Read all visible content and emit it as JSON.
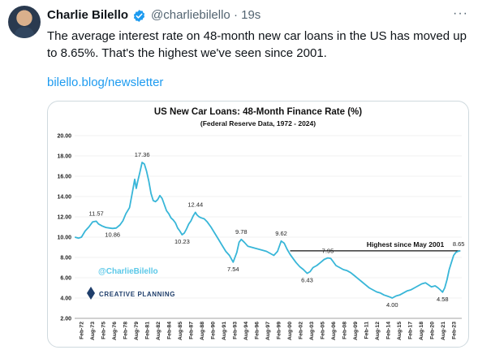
{
  "tweet": {
    "author": "Charlie Bilello",
    "handle": "@charliebilello",
    "time": "· 19s",
    "more": "···",
    "text": "The average interest rate on 48-month new car loans in the US has moved up to 8.65%. That's the highest we've seen since 2001.",
    "link": "bilello.blog/newsletter"
  },
  "chart_data": {
    "type": "line",
    "title": "US New Car Loans: 48-Month Finance Rate (%)",
    "subtitle": "(Federal Reserve Data, 1972 - 2024)",
    "watermark": "@CharlieBilello",
    "logo": "CREATIVE PLANNING",
    "ylim": [
      2,
      20
    ],
    "yticks": [
      "2.00",
      "4.00",
      "6.00",
      "8.00",
      "10.00",
      "12.00",
      "14.00",
      "16.00",
      "18.00",
      "20.00"
    ],
    "xlim": [
      1972.08,
      2024.4
    ],
    "xticks": [
      "Feb-72",
      "Aug-73",
      "Feb-75",
      "Aug-76",
      "Feb-78",
      "Aug-79",
      "Feb-81",
      "Aug-82",
      "Feb-84",
      "Aug-85",
      "Feb-87",
      "Aug-88",
      "Feb-90",
      "Aug-91",
      "Feb-93",
      "Aug-94",
      "Feb-96",
      "Aug-97",
      "Feb-99",
      "Aug-00",
      "Feb-02",
      "Aug-03",
      "Feb-05",
      "Aug-06",
      "Feb-08",
      "Aug-09",
      "Feb-11",
      "Aug-12",
      "Feb-14",
      "Aug-15",
      "Feb-17",
      "Aug-18",
      "Feb-20",
      "Aug-21",
      "Feb-23"
    ],
    "line_color": "#38b6d8",
    "series": [
      {
        "x": [
          1972.1,
          1972.6,
          1973.0,
          1973.5,
          1974.0,
          1974.5,
          1975.0,
          1975.3,
          1975.8,
          1976.3,
          1976.8,
          1977.2,
          1977.7,
          1978.2,
          1978.6,
          1979.0,
          1979.5,
          1979.9,
          1980.2,
          1980.4,
          1980.6,
          1980.9,
          1981.2,
          1981.5,
          1981.8,
          1982.1,
          1982.4,
          1982.7,
          1983.0,
          1983.3,
          1983.6,
          1983.9,
          1984.2,
          1984.5,
          1984.8,
          1985.1,
          1985.4,
          1985.7,
          1986.0,
          1986.3,
          1986.6,
          1986.9,
          1987.2,
          1987.5,
          1987.8,
          1988.1,
          1988.4,
          1988.6,
          1988.9,
          1989.2,
          1989.6,
          1990.0,
          1990.5,
          1991.0,
          1991.5,
          1992.0,
          1992.5,
          1993.0,
          1993.5,
          1994.0,
          1994.3,
          1994.6,
          1995.0,
          1995.5,
          1996.0,
          1996.5,
          1997.0,
          1997.5,
          1998.0,
          1998.5,
          1999.0,
          1999.5,
          2000.0,
          2000.4,
          2000.8,
          2001.2,
          2001.6,
          2002.0,
          2002.5,
          2003.0,
          2003.5,
          2003.9,
          2004.3,
          2004.8,
          2005.3,
          2005.8,
          2006.3,
          2006.7,
          2007.0,
          2007.4,
          2007.9,
          2008.4,
          2008.9,
          2009.4,
          2009.9,
          2010.4,
          2010.9,
          2011.4,
          2011.9,
          2012.4,
          2012.9,
          2013.4,
          2013.9,
          2014.3,
          2014.7,
          2015.0,
          2015.5,
          2016.0,
          2016.5,
          2017.0,
          2017.5,
          2018.0,
          2018.5,
          2019.0,
          2019.5,
          2019.9,
          2020.3,
          2020.8,
          2021.2,
          2021.5,
          2021.8,
          2022.1,
          2022.4,
          2022.7,
          2023.0,
          2023.3,
          2023.6,
          2023.9,
          2024.2
        ],
        "values": [
          10.0,
          9.9,
          10.0,
          10.6,
          11.0,
          11.5,
          11.57,
          11.3,
          11.1,
          10.95,
          10.9,
          10.86,
          10.9,
          11.2,
          11.6,
          12.3,
          12.9,
          14.5,
          15.7,
          14.8,
          15.5,
          16.4,
          17.36,
          17.2,
          16.5,
          15.5,
          14.3,
          13.6,
          13.5,
          13.7,
          14.1,
          13.8,
          13.2,
          12.6,
          12.3,
          11.9,
          11.7,
          11.4,
          10.9,
          10.6,
          10.23,
          10.4,
          10.8,
          11.3,
          11.6,
          12.1,
          12.44,
          12.2,
          12.0,
          11.9,
          11.8,
          11.5,
          11.0,
          10.4,
          9.8,
          9.2,
          8.6,
          8.2,
          7.54,
          8.5,
          9.5,
          9.78,
          9.5,
          9.1,
          9.0,
          8.9,
          8.8,
          8.7,
          8.6,
          8.4,
          8.2,
          8.6,
          9.62,
          9.4,
          8.8,
          8.3,
          7.9,
          7.5,
          7.1,
          6.8,
          6.43,
          6.6,
          7.0,
          7.2,
          7.5,
          7.8,
          7.95,
          7.9,
          7.6,
          7.2,
          7.0,
          6.8,
          6.7,
          6.5,
          6.2,
          5.9,
          5.6,
          5.3,
          5.0,
          4.8,
          4.6,
          4.5,
          4.3,
          4.2,
          4.1,
          4.0,
          4.2,
          4.3,
          4.5,
          4.7,
          4.8,
          5.0,
          5.2,
          5.4,
          5.5,
          5.3,
          5.1,
          5.2,
          5.0,
          4.8,
          4.58,
          5.0,
          5.8,
          6.8,
          7.5,
          8.2,
          8.5,
          8.6,
          8.65
        ]
      }
    ],
    "data_labels": [
      {
        "x": 1975.0,
        "y": 11.57,
        "text": "11.57"
      },
      {
        "x": 1977.2,
        "y": 10.86,
        "text": "10.86"
      },
      {
        "x": 1981.2,
        "y": 17.36,
        "text": "17.36"
      },
      {
        "x": 1986.6,
        "y": 10.23,
        "text": "10.23"
      },
      {
        "x": 1988.4,
        "y": 12.44,
        "text": "12.44"
      },
      {
        "x": 1993.5,
        "y": 7.54,
        "text": "7.54"
      },
      {
        "x": 1994.6,
        "y": 9.78,
        "text": "9.78"
      },
      {
        "x": 2000.0,
        "y": 9.62,
        "text": "9.62"
      },
      {
        "x": 2003.5,
        "y": 6.43,
        "text": "6.43"
      },
      {
        "x": 2006.3,
        "y": 7.95,
        "text": "7.95"
      },
      {
        "x": 2015.0,
        "y": 4.0,
        "text": "4.00"
      },
      {
        "x": 2021.8,
        "y": 4.58,
        "text": "4.58"
      },
      {
        "x": 2024.2,
        "y": 8.65,
        "text": "8.65"
      }
    ],
    "reference_line": {
      "y": 8.65,
      "x_start": 2001.2,
      "x_end": 2024.2,
      "label": "Highest since May 2001"
    }
  }
}
